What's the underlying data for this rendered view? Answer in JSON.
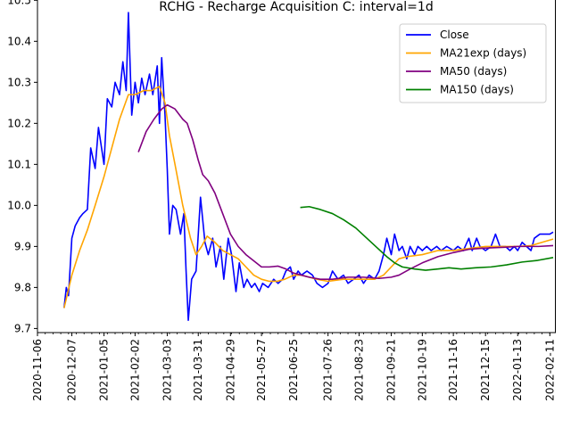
{
  "chart_data": {
    "type": "line",
    "title": "RCHG - Recharge Acquisition C: interval=1d",
    "xlabel": "",
    "ylabel": "",
    "xlim": [
      "2020-11-06",
      "2022-02-16"
    ],
    "ylim": [
      9.69,
      10.505
    ],
    "grid": false,
    "legend_position": "top-right",
    "x_ticks": [
      "2020-11-06",
      "2020-12-07",
      "2021-01-05",
      "2021-02-02",
      "2021-03-03",
      "2021-03-31",
      "2021-04-29",
      "2021-05-27",
      "2021-06-25",
      "2021-07-26",
      "2021-08-23",
      "2021-09-21",
      "2021-10-19",
      "2021-11-16",
      "2021-12-15",
      "2022-01-13",
      "2022-02-11"
    ],
    "y_ticks": [
      9.7,
      9.8,
      9.9,
      10.0,
      10.1,
      10.2,
      10.3,
      10.4,
      10.5
    ],
    "series": [
      {
        "name": "Close",
        "color": "#0000ff",
        "points": [
          [
            "2020-11-30",
            9.75
          ],
          [
            "2020-12-02",
            9.8
          ],
          [
            "2020-12-04",
            9.78
          ],
          [
            "2020-12-07",
            9.92
          ],
          [
            "2020-12-10",
            9.95
          ],
          [
            "2020-12-14",
            9.97
          ],
          [
            "2020-12-17",
            9.98
          ],
          [
            "2020-12-21",
            9.99
          ],
          [
            "2020-12-24",
            10.14
          ],
          [
            "2020-12-28",
            10.09
          ],
          [
            "2020-12-31",
            10.19
          ],
          [
            "2021-01-05",
            10.1
          ],
          [
            "2021-01-08",
            10.26
          ],
          [
            "2021-01-12",
            10.24
          ],
          [
            "2021-01-15",
            10.3
          ],
          [
            "2021-01-19",
            10.27
          ],
          [
            "2021-01-22",
            10.35
          ],
          [
            "2021-01-25",
            10.28
          ],
          [
            "2021-01-27",
            10.47
          ],
          [
            "2021-01-30",
            10.22
          ],
          [
            "2021-02-02",
            10.3
          ],
          [
            "2021-02-05",
            10.25
          ],
          [
            "2021-02-08",
            10.31
          ],
          [
            "2021-02-11",
            10.27
          ],
          [
            "2021-02-15",
            10.32
          ],
          [
            "2021-02-18",
            10.27
          ],
          [
            "2021-02-22",
            10.34
          ],
          [
            "2021-02-24",
            10.2
          ],
          [
            "2021-02-26",
            10.36
          ],
          [
            "2021-03-01",
            10.22
          ],
          [
            "2021-03-03",
            10.09
          ],
          [
            "2021-03-05",
            9.93
          ],
          [
            "2021-03-08",
            10.0
          ],
          [
            "2021-03-11",
            9.99
          ],
          [
            "2021-03-15",
            9.93
          ],
          [
            "2021-03-18",
            9.98
          ],
          [
            "2021-03-20",
            9.84
          ],
          [
            "2021-03-22",
            9.72
          ],
          [
            "2021-03-25",
            9.82
          ],
          [
            "2021-03-29",
            9.84
          ],
          [
            "2021-04-02",
            10.02
          ],
          [
            "2021-04-06",
            9.91
          ],
          [
            "2021-04-09",
            9.88
          ],
          [
            "2021-04-13",
            9.92
          ],
          [
            "2021-04-16",
            9.85
          ],
          [
            "2021-04-20",
            9.9
          ],
          [
            "2021-04-23",
            9.82
          ],
          [
            "2021-04-27",
            9.92
          ],
          [
            "2021-04-30",
            9.88
          ],
          [
            "2021-05-04",
            9.79
          ],
          [
            "2021-05-07",
            9.86
          ],
          [
            "2021-05-11",
            9.8
          ],
          [
            "2021-05-14",
            9.82
          ],
          [
            "2021-05-18",
            9.8
          ],
          [
            "2021-05-21",
            9.81
          ],
          [
            "2021-05-25",
            9.79
          ],
          [
            "2021-05-28",
            9.81
          ],
          [
            "2021-06-02",
            9.8
          ],
          [
            "2021-06-07",
            9.82
          ],
          [
            "2021-06-11",
            9.81
          ],
          [
            "2021-06-15",
            9.82
          ],
          [
            "2021-06-18",
            9.84
          ],
          [
            "2021-06-22",
            9.85
          ],
          [
            "2021-06-25",
            9.82
          ],
          [
            "2021-06-29",
            9.84
          ],
          [
            "2021-07-02",
            9.83
          ],
          [
            "2021-07-07",
            9.84
          ],
          [
            "2021-07-12",
            9.83
          ],
          [
            "2021-07-16",
            9.81
          ],
          [
            "2021-07-21",
            9.8
          ],
          [
            "2021-07-26",
            9.81
          ],
          [
            "2021-07-30",
            9.84
          ],
          [
            "2021-08-04",
            9.82
          ],
          [
            "2021-08-09",
            9.83
          ],
          [
            "2021-08-13",
            9.81
          ],
          [
            "2021-08-18",
            9.82
          ],
          [
            "2021-08-23",
            9.83
          ],
          [
            "2021-08-27",
            9.81
          ],
          [
            "2021-09-01",
            9.83
          ],
          [
            "2021-09-06",
            9.82
          ],
          [
            "2021-09-10",
            9.84
          ],
          [
            "2021-09-14",
            9.88
          ],
          [
            "2021-09-17",
            9.92
          ],
          [
            "2021-09-21",
            9.88
          ],
          [
            "2021-09-24",
            9.93
          ],
          [
            "2021-09-28",
            9.89
          ],
          [
            "2021-10-01",
            9.9
          ],
          [
            "2021-10-05",
            9.87
          ],
          [
            "2021-10-08",
            9.9
          ],
          [
            "2021-10-12",
            9.88
          ],
          [
            "2021-10-15",
            9.9
          ],
          [
            "2021-10-19",
            9.89
          ],
          [
            "2021-10-23",
            9.9
          ],
          [
            "2021-10-27",
            9.89
          ],
          [
            "2021-11-01",
            9.9
          ],
          [
            "2021-11-05",
            9.89
          ],
          [
            "2021-11-10",
            9.9
          ],
          [
            "2021-11-16",
            9.89
          ],
          [
            "2021-11-20",
            9.9
          ],
          [
            "2021-11-25",
            9.89
          ],
          [
            "2021-11-30",
            9.92
          ],
          [
            "2021-12-03",
            9.89
          ],
          [
            "2021-12-07",
            9.92
          ],
          [
            "2021-12-10",
            9.9
          ],
          [
            "2021-12-15",
            9.89
          ],
          [
            "2021-12-20",
            9.9
          ],
          [
            "2021-12-24",
            9.93
          ],
          [
            "2021-12-28",
            9.9
          ],
          [
            "2022-01-02",
            9.9
          ],
          [
            "2022-01-06",
            9.89
          ],
          [
            "2022-01-10",
            9.9
          ],
          [
            "2022-01-13",
            9.89
          ],
          [
            "2022-01-17",
            9.91
          ],
          [
            "2022-01-21",
            9.9
          ],
          [
            "2022-01-25",
            9.89
          ],
          [
            "2022-01-28",
            9.92
          ],
          [
            "2022-02-02",
            9.93
          ],
          [
            "2022-02-08",
            9.93
          ],
          [
            "2022-02-11",
            9.93
          ],
          [
            "2022-02-14",
            9.935
          ]
        ]
      },
      {
        "name": "MA21exp (days)",
        "color": "#ffa500",
        "points": [
          [
            "2020-11-30",
            9.75
          ],
          [
            "2020-12-07",
            9.83
          ],
          [
            "2020-12-14",
            9.89
          ],
          [
            "2020-12-21",
            9.94
          ],
          [
            "2020-12-28",
            10.0
          ],
          [
            "2021-01-05",
            10.07
          ],
          [
            "2021-01-12",
            10.14
          ],
          [
            "2021-01-19",
            10.21
          ],
          [
            "2021-01-27",
            10.27
          ],
          [
            "2021-02-02",
            10.27
          ],
          [
            "2021-02-10",
            10.28
          ],
          [
            "2021-02-17",
            10.28
          ],
          [
            "2021-02-24",
            10.29
          ],
          [
            "2021-03-01",
            10.25
          ],
          [
            "2021-03-05",
            10.17
          ],
          [
            "2021-03-10",
            10.1
          ],
          [
            "2021-03-17",
            10.0
          ],
          [
            "2021-03-24",
            9.92
          ],
          [
            "2021-03-29",
            9.88
          ],
          [
            "2021-04-03",
            9.9
          ],
          [
            "2021-04-08",
            9.925
          ],
          [
            "2021-04-15",
            9.91
          ],
          [
            "2021-04-22",
            9.89
          ],
          [
            "2021-04-29",
            9.88
          ],
          [
            "2021-05-06",
            9.87
          ],
          [
            "2021-05-13",
            9.85
          ],
          [
            "2021-05-20",
            9.83
          ],
          [
            "2021-05-27",
            9.82
          ],
          [
            "2021-06-03",
            9.815
          ],
          [
            "2021-06-10",
            9.815
          ],
          [
            "2021-06-17",
            9.82
          ],
          [
            "2021-06-25",
            9.83
          ],
          [
            "2021-07-02",
            9.83
          ],
          [
            "2021-07-09",
            9.825
          ],
          [
            "2021-07-16",
            9.82
          ],
          [
            "2021-07-26",
            9.815
          ],
          [
            "2021-08-09",
            9.82
          ],
          [
            "2021-08-23",
            9.82
          ],
          [
            "2021-09-06",
            9.82
          ],
          [
            "2021-09-14",
            9.83
          ],
          [
            "2021-09-21",
            9.85
          ],
          [
            "2021-09-28",
            9.87
          ],
          [
            "2021-10-05",
            9.875
          ],
          [
            "2021-10-19",
            9.88
          ],
          [
            "2021-11-02",
            9.89
          ],
          [
            "2021-11-16",
            9.89
          ],
          [
            "2021-11-30",
            9.895
          ],
          [
            "2021-12-15",
            9.9
          ],
          [
            "2022-01-01",
            9.9
          ],
          [
            "2022-01-13",
            9.9
          ],
          [
            "2022-01-25",
            9.902
          ],
          [
            "2022-02-04",
            9.91
          ],
          [
            "2022-02-14",
            9.918
          ]
        ]
      },
      {
        "name": "MA50 (days)",
        "color": "#800080",
        "points": [
          [
            "2021-02-05",
            10.13
          ],
          [
            "2021-02-12",
            10.18
          ],
          [
            "2021-02-19",
            10.21
          ],
          [
            "2021-02-26",
            10.235
          ],
          [
            "2021-03-03",
            10.245
          ],
          [
            "2021-03-10",
            10.235
          ],
          [
            "2021-03-17",
            10.21
          ],
          [
            "2021-03-21",
            10.2
          ],
          [
            "2021-03-26",
            10.16
          ],
          [
            "2021-03-31",
            10.11
          ],
          [
            "2021-04-04",
            10.075
          ],
          [
            "2021-04-09",
            10.06
          ],
          [
            "2021-04-15",
            10.03
          ],
          [
            "2021-04-22",
            9.98
          ],
          [
            "2021-04-29",
            9.93
          ],
          [
            "2021-05-06",
            9.9
          ],
          [
            "2021-05-13",
            9.88
          ],
          [
            "2021-05-20",
            9.865
          ],
          [
            "2021-05-27",
            9.85
          ],
          [
            "2021-06-03",
            9.85
          ],
          [
            "2021-06-11",
            9.852
          ],
          [
            "2021-06-18",
            9.845
          ],
          [
            "2021-06-25",
            9.835
          ],
          [
            "2021-07-02",
            9.83
          ],
          [
            "2021-07-09",
            9.825
          ],
          [
            "2021-07-19",
            9.82
          ],
          [
            "2021-07-30",
            9.82
          ],
          [
            "2021-08-13",
            9.825
          ],
          [
            "2021-08-27",
            9.825
          ],
          [
            "2021-09-10",
            9.822
          ],
          [
            "2021-09-21",
            9.825
          ],
          [
            "2021-09-28",
            9.83
          ],
          [
            "2021-10-08",
            9.845
          ],
          [
            "2021-10-19",
            9.86
          ],
          [
            "2021-11-02",
            9.875
          ],
          [
            "2021-11-16",
            9.885
          ],
          [
            "2021-11-30",
            9.893
          ],
          [
            "2021-12-15",
            9.896
          ],
          [
            "2022-01-01",
            9.898
          ],
          [
            "2022-01-13",
            9.9
          ],
          [
            "2022-02-01",
            9.9
          ],
          [
            "2022-02-14",
            9.902
          ]
        ]
      },
      {
        "name": "MA150 (days)",
        "color": "#008000",
        "points": [
          [
            "2021-07-01",
            9.995
          ],
          [
            "2021-07-09",
            9.997
          ],
          [
            "2021-07-19",
            9.99
          ],
          [
            "2021-07-30",
            9.98
          ],
          [
            "2021-08-09",
            9.965
          ],
          [
            "2021-08-20",
            9.945
          ],
          [
            "2021-08-30",
            9.92
          ],
          [
            "2021-09-09",
            9.895
          ],
          [
            "2021-09-17",
            9.875
          ],
          [
            "2021-09-24",
            9.86
          ],
          [
            "2021-10-01",
            9.85
          ],
          [
            "2021-10-12",
            9.845
          ],
          [
            "2021-10-22",
            9.842
          ],
          [
            "2021-11-02",
            9.845
          ],
          [
            "2021-11-12",
            9.848
          ],
          [
            "2021-11-23",
            9.845
          ],
          [
            "2021-12-06",
            9.848
          ],
          [
            "2021-12-20",
            9.85
          ],
          [
            "2022-01-03",
            9.855
          ],
          [
            "2022-01-17",
            9.862
          ],
          [
            "2022-01-31",
            9.866
          ],
          [
            "2022-02-14",
            9.873
          ]
        ]
      }
    ]
  }
}
